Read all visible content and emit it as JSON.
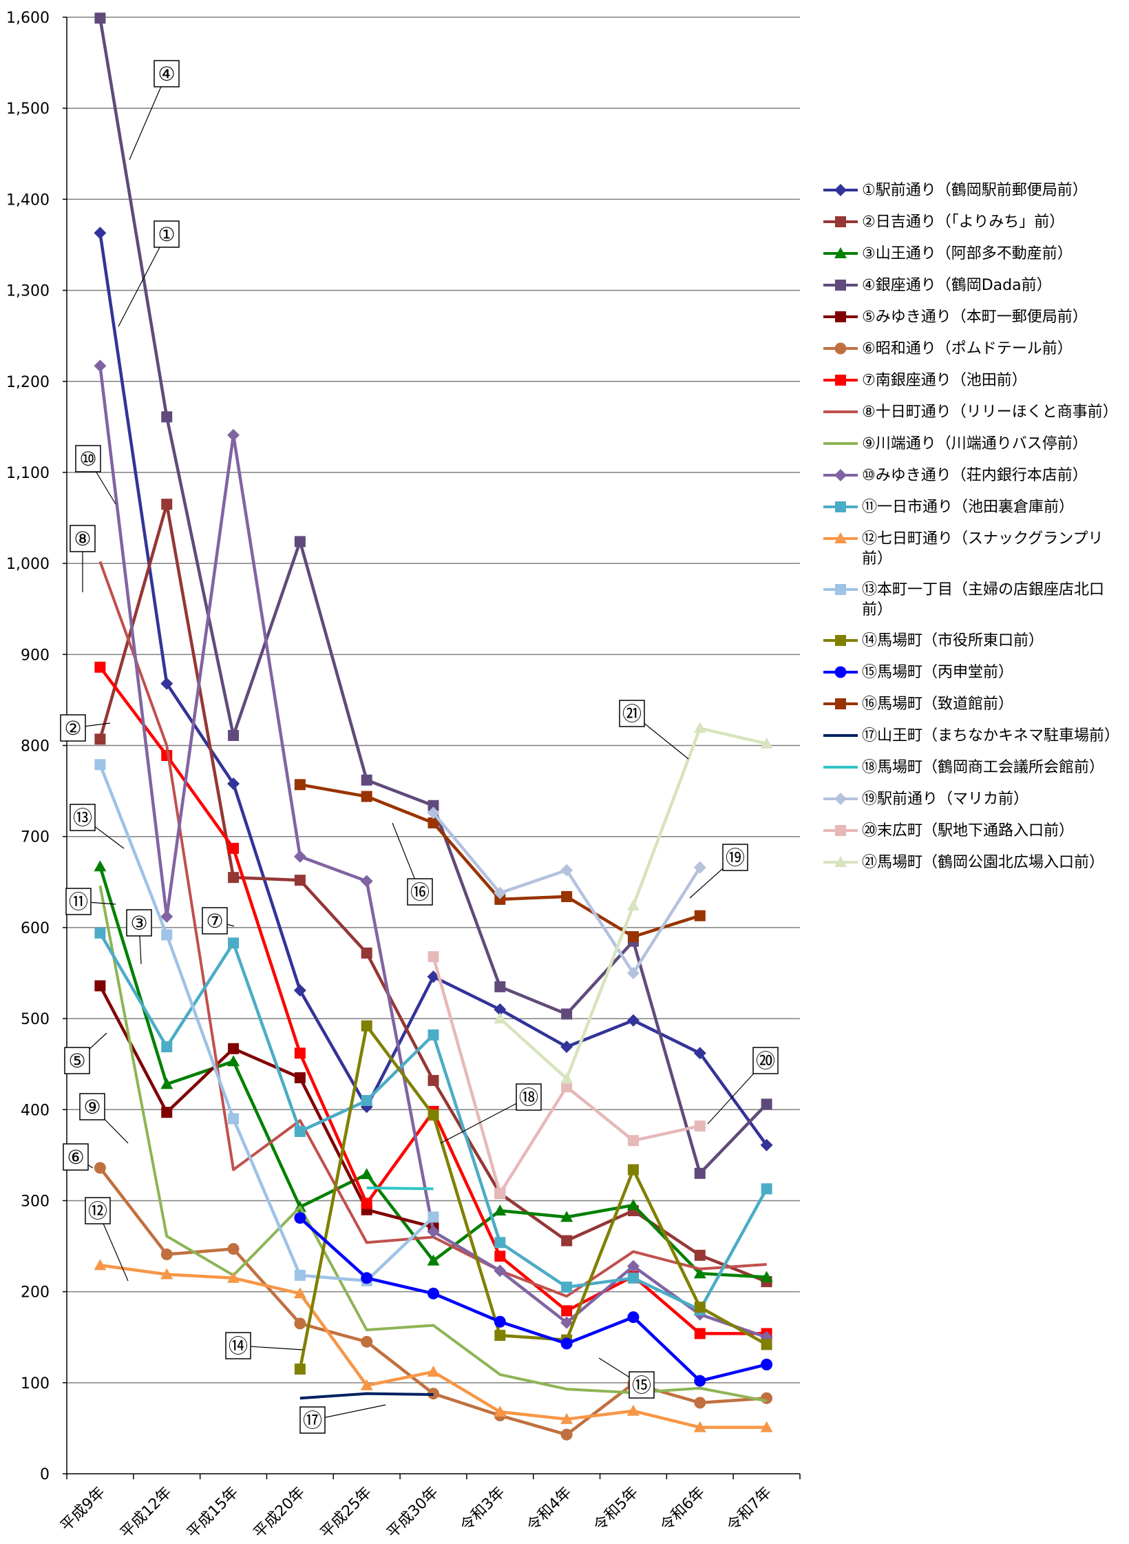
{
  "chart_data": {
    "type": "line",
    "title": "",
    "xlabel": "",
    "ylabel": "",
    "categories": [
      "平成9年",
      "平成12年",
      "平成15年",
      "平成20年",
      "平成25年",
      "平成30年",
      "令和3年",
      "令和4年",
      "令和5年",
      "令和6年",
      "令和7年"
    ],
    "ylim": [
      0,
      1600
    ],
    "yticks": [
      0,
      100,
      200,
      300,
      400,
      500,
      600,
      700,
      800,
      900,
      1000,
      1100,
      1200,
      1300,
      1400,
      1500,
      1600
    ],
    "ytick_labels": [
      "0",
      "100",
      "200",
      "300",
      "400",
      "500",
      "600",
      "700",
      "800",
      "900",
      "1,000",
      "1,100",
      "1,200",
      "1,300",
      "1,400",
      "1,500",
      "1,600"
    ],
    "grid": "horizontal",
    "legend_position": "right",
    "series": [
      {
        "name": "①駅前通り（鶴岡駅前郵便局前）",
        "color": "#333399",
        "marker": "diamond",
        "values": [
          1363,
          868,
          758,
          531,
          403,
          546,
          510,
          469,
          498,
          462,
          361
        ]
      },
      {
        "name": "②日吉通り（「よりみち」前）",
        "color": "#953735",
        "marker": "square",
        "values": [
          807,
          1065,
          655,
          652,
          572,
          432,
          308,
          256,
          289,
          240,
          211
        ]
      },
      {
        "name": "③山王通り（阿部多不動産前）",
        "color": "#008000",
        "marker": "triangle",
        "values": [
          667,
          428,
          453,
          293,
          329,
          234,
          289,
          282,
          295,
          220,
          216
        ]
      },
      {
        "name": "④銀座通り（鶴岡Dada前）",
        "color": "#604A7B",
        "marker": "square",
        "values": [
          1599,
          1161,
          811,
          1024,
          762,
          734,
          535,
          505,
          585,
          330,
          406
        ]
      },
      {
        "name": "⑤みゆき通り（本町一郵便局前）",
        "color": "#800000",
        "marker": "square",
        "values": [
          536,
          397,
          467,
          435,
          290,
          271,
          null,
          null,
          null,
          null,
          null
        ]
      },
      {
        "name": "⑥昭和通り（ポムドテール前）",
        "color": "#C0703F",
        "marker": "circle",
        "values": [
          336,
          241,
          247,
          165,
          145,
          88,
          64,
          43,
          99,
          78,
          83
        ]
      },
      {
        "name": "⑦南銀座通り（池田前）",
        "color": "#FF0000",
        "marker": "square",
        "values": [
          886,
          789,
          687,
          462,
          297,
          398,
          239,
          179,
          217,
          154,
          154
        ]
      },
      {
        "name": "⑧十日町通り（リリーほくと商事前）",
        "color": "#C0504D",
        "marker": "none",
        "values": [
          1002,
          800,
          334,
          388,
          254,
          260,
          223,
          195,
          244,
          225,
          230
        ]
      },
      {
        "name": "⑨川端通り（川端通りバス停前）",
        "color": "#8DB455",
        "marker": "none",
        "values": [
          646,
          261,
          218,
          293,
          158,
          163,
          109,
          93,
          89,
          94,
          80
        ]
      },
      {
        "name": "⑩みゆき通り（荘内銀行本店前）",
        "color": "#8064A2",
        "marker": "diamond",
        "values": [
          1217,
          612,
          1141,
          678,
          651,
          266,
          223,
          166,
          228,
          175,
          150
        ]
      },
      {
        "name": "⑪一日市通り（池田裏倉庫前）",
        "color": "#4BACC6",
        "marker": "square",
        "values": [
          594,
          469,
          583,
          376,
          410,
          482,
          254,
          205,
          215,
          180,
          313
        ]
      },
      {
        "name": "⑫七日町通り（スナックグランプリ前）",
        "color": "#F79646",
        "marker": "triangle",
        "values": [
          229,
          219,
          215,
          198,
          97,
          112,
          68,
          60,
          69,
          51,
          51
        ]
      },
      {
        "name": "⑬本町一丁目（主婦の店銀座店北口前）",
        "color": "#9DC3E6",
        "marker": "square",
        "values": [
          779,
          592,
          390,
          218,
          212,
          282,
          null,
          null,
          null,
          null,
          null
        ]
      },
      {
        "name": "⑭馬場町（市役所東口前）",
        "color": "#808000",
        "marker": "square",
        "values": [
          null,
          null,
          null,
          115,
          492,
          394,
          152,
          147,
          334,
          183,
          142
        ]
      },
      {
        "name": "⑮馬場町（丙申堂前）",
        "color": "#0000FF",
        "marker": "circle",
        "values": [
          null,
          null,
          null,
          281,
          215,
          198,
          167,
          143,
          172,
          102,
          120
        ]
      },
      {
        "name": "⑯馬場町（致道館前）",
        "color": "#993300",
        "marker": "square",
        "values": [
          null,
          null,
          null,
          757,
          744,
          715,
          631,
          634,
          590,
          613,
          null
        ]
      },
      {
        "name": "⑰山王町（まちなかキネマ駐車場前）",
        "color": "#002060",
        "marker": "none",
        "values": [
          null,
          null,
          null,
          83,
          88,
          87,
          null,
          null,
          null,
          null,
          null
        ]
      },
      {
        "name": "⑱馬場町（鶴岡商工会議所会館前）",
        "color": "#31C5C5",
        "marker": "none",
        "values": [
          null,
          null,
          null,
          null,
          314,
          313,
          null,
          null,
          null,
          null,
          null
        ]
      },
      {
        "name": "⑲駅前通り（マリカ前）",
        "color": "#B4C2DE",
        "marker": "diamond",
        "values": [
          null,
          null,
          null,
          null,
          null,
          726,
          638,
          663,
          550,
          666,
          null
        ]
      },
      {
        "name": "⑳末広町（駅地下通路入口前）",
        "color": "#E6B9B8",
        "marker": "square",
        "values": [
          null,
          null,
          null,
          null,
          null,
          568,
          308,
          425,
          366,
          382,
          null
        ]
      },
      {
        "name": "㉑馬場町（鶴岡公園北広場入口前）",
        "color": "#D7E4BD",
        "marker": "triangle",
        "values": [
          null,
          null,
          null,
          null,
          null,
          null,
          500,
          434,
          624,
          819,
          802
        ]
      }
    ],
    "annotations": [
      {
        "label": "④",
        "series": "④銀座通り（鶴岡Dada前）"
      },
      {
        "label": "①",
        "series": "①駅前通り（鶴岡駅前郵便局前）"
      },
      {
        "label": "⑩",
        "series": "⑩みゆき通り（荘内銀行本店前）"
      },
      {
        "label": "⑧",
        "series": "⑧十日町通り（リリーほくと商事前）"
      },
      {
        "label": "②",
        "series": "②日吉通り（「よりみち」前）"
      },
      {
        "label": "⑬",
        "series": "⑬本町一丁目（主婦の店銀座店北口前）"
      },
      {
        "label": "⑪",
        "series": "⑪一日市通り（池田裏倉庫前）"
      },
      {
        "label": "③",
        "series": "③山王通り（阿部多不動産前）"
      },
      {
        "label": "⑦",
        "series": "⑦南銀座通り（池田前）"
      },
      {
        "label": "⑤",
        "series": "⑤みゆき通り（本町一郵便局前）"
      },
      {
        "label": "⑨",
        "series": "⑨川端通り（川端通りバス停前）"
      },
      {
        "label": "⑥",
        "series": "⑥昭和通り（ポムドテール前）"
      },
      {
        "label": "⑫",
        "series": "⑫七日町通り（スナックグランプリ前）"
      },
      {
        "label": "⑭",
        "series": "⑭馬場町（市役所東口前）"
      },
      {
        "label": "⑰",
        "series": "⑰山王町（まちなかキネマ駐車場前）"
      },
      {
        "label": "⑯",
        "series": "⑯馬場町（致道館前）"
      },
      {
        "label": "⑱",
        "series": "⑱馬場町（鶴岡商工会議所会館前）"
      },
      {
        "label": "⑮",
        "series": "⑮馬場町（丙申堂前）"
      },
      {
        "label": "㉑",
        "series": "㉑馬場町（鶴岡公園北広場入口前）"
      },
      {
        "label": "⑲",
        "series": "⑲駅前通り（マリカ前）"
      },
      {
        "label": "⑳",
        "series": "⑳末広町（駅地下通路入口前）"
      }
    ]
  }
}
